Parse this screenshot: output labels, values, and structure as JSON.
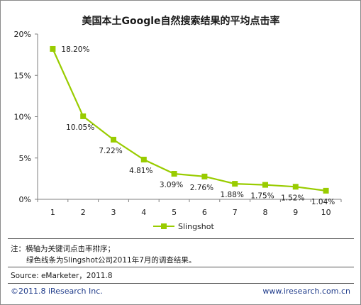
{
  "chart_data": {
    "type": "line",
    "title": "美国本土Google自然搜索结果的平均点击率",
    "x": [
      1,
      2,
      3,
      4,
      5,
      6,
      7,
      8,
      9,
      10
    ],
    "series": [
      {
        "name": "Slingshot",
        "values": [
          18.2,
          10.05,
          7.22,
          4.81,
          3.09,
          2.76,
          1.88,
          1.75,
          1.52,
          1.04
        ],
        "labels": [
          "18.20%",
          "10.05%",
          "7.22%",
          "4.81%",
          "3.09%",
          "2.76%",
          "1.88%",
          "1.75%",
          "1.52%",
          "1.04%"
        ]
      }
    ],
    "ylim": [
      0,
      20
    ],
    "yticks": [
      "0%",
      "5%",
      "10%",
      "15%",
      "20%"
    ],
    "xticks": [
      "1",
      "2",
      "3",
      "4",
      "5",
      "6",
      "7",
      "8",
      "9",
      "10"
    ],
    "grid": false,
    "legend_position": "bottom"
  },
  "colors": {
    "series": "#99cc00",
    "marker": "#99cc00",
    "axis": "#7f7f7f",
    "footer": "#1f3b8a"
  },
  "notes": {
    "line1": "注：横轴为关键词点击率排序；",
    "line2": "绿色线条为Slingshot公司2011年7月的调查结果。",
    "source": "Source: eMarketer，2011.8"
  },
  "footer": {
    "copyright": "©2011.8 iResearch Inc.",
    "website": "www.iresearch.com.cn"
  }
}
